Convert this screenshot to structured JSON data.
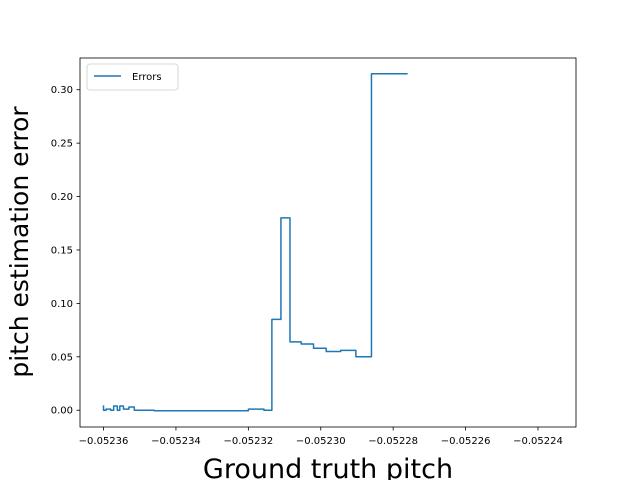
{
  "chart_data": {
    "type": "line",
    "title": "",
    "xlabel": "Ground truth pitch",
    "ylabel": "pitch estimation error",
    "xlim": [
      -0.0523665,
      -0.0522295
    ],
    "ylim": [
      -0.0157,
      0.3297
    ],
    "x_ticks": [
      -0.05236,
      -0.05234,
      -0.05232,
      -0.0523,
      -0.05228,
      -0.05226,
      -0.05224
    ],
    "x_tick_labels": [
      "−0.05236",
      "−0.05234",
      "−0.05232",
      "−0.05230",
      "−0.05228",
      "−0.05226",
      "−0.05224"
    ],
    "y_ticks": [
      0.0,
      0.05,
      0.1,
      0.15,
      0.2,
      0.25,
      0.3
    ],
    "y_tick_labels": [
      "0.00",
      "0.05",
      "0.10",
      "0.15",
      "0.20",
      "0.25",
      "0.30"
    ],
    "grid": false,
    "legend_position": "top-left",
    "series": [
      {
        "name": "Errors",
        "color": "#1f77b4",
        "points": [
          [
            -0.05236,
            0.0045
          ],
          [
            -0.05236,
            0.0
          ],
          [
            -0.0523593,
            0.0
          ],
          [
            -0.0523593,
            0.001
          ],
          [
            -0.052358,
            0.001
          ],
          [
            -0.052358,
            0.0
          ],
          [
            -0.0523572,
            0.0
          ],
          [
            -0.0523572,
            0.004
          ],
          [
            -0.0523562,
            0.004
          ],
          [
            -0.0523562,
            0.0
          ],
          [
            -0.0523555,
            0.0
          ],
          [
            -0.0523555,
            0.004
          ],
          [
            -0.0523545,
            0.004
          ],
          [
            -0.0523545,
            0.001
          ],
          [
            -0.052353,
            0.001
          ],
          [
            -0.052353,
            0.003
          ],
          [
            -0.0523515,
            0.003
          ],
          [
            -0.0523515,
            0.0
          ],
          [
            -0.052346,
            0.0
          ],
          [
            -0.052346,
            -0.0005
          ],
          [
            -0.05232,
            -0.0005
          ],
          [
            -0.05232,
            0.001
          ],
          [
            -0.0523157,
            0.001
          ],
          [
            -0.0523157,
            0.0
          ],
          [
            -0.0523135,
            0.0
          ],
          [
            -0.0523135,
            0.085
          ],
          [
            -0.052311,
            0.085
          ],
          [
            -0.052311,
            0.18
          ],
          [
            -0.0523085,
            0.18
          ],
          [
            -0.0523085,
            0.064
          ],
          [
            -0.0523054,
            0.064
          ],
          [
            -0.0523054,
            0.062
          ],
          [
            -0.052302,
            0.062
          ],
          [
            -0.052302,
            0.058
          ],
          [
            -0.0522985,
            0.058
          ],
          [
            -0.0522985,
            0.055
          ],
          [
            -0.0522945,
            0.055
          ],
          [
            -0.0522945,
            0.056
          ],
          [
            -0.0522903,
            0.056
          ],
          [
            -0.0522903,
            0.05
          ],
          [
            -0.052286,
            0.05
          ],
          [
            -0.052286,
            0.315
          ],
          [
            -0.052276,
            0.315
          ]
        ]
      }
    ]
  }
}
